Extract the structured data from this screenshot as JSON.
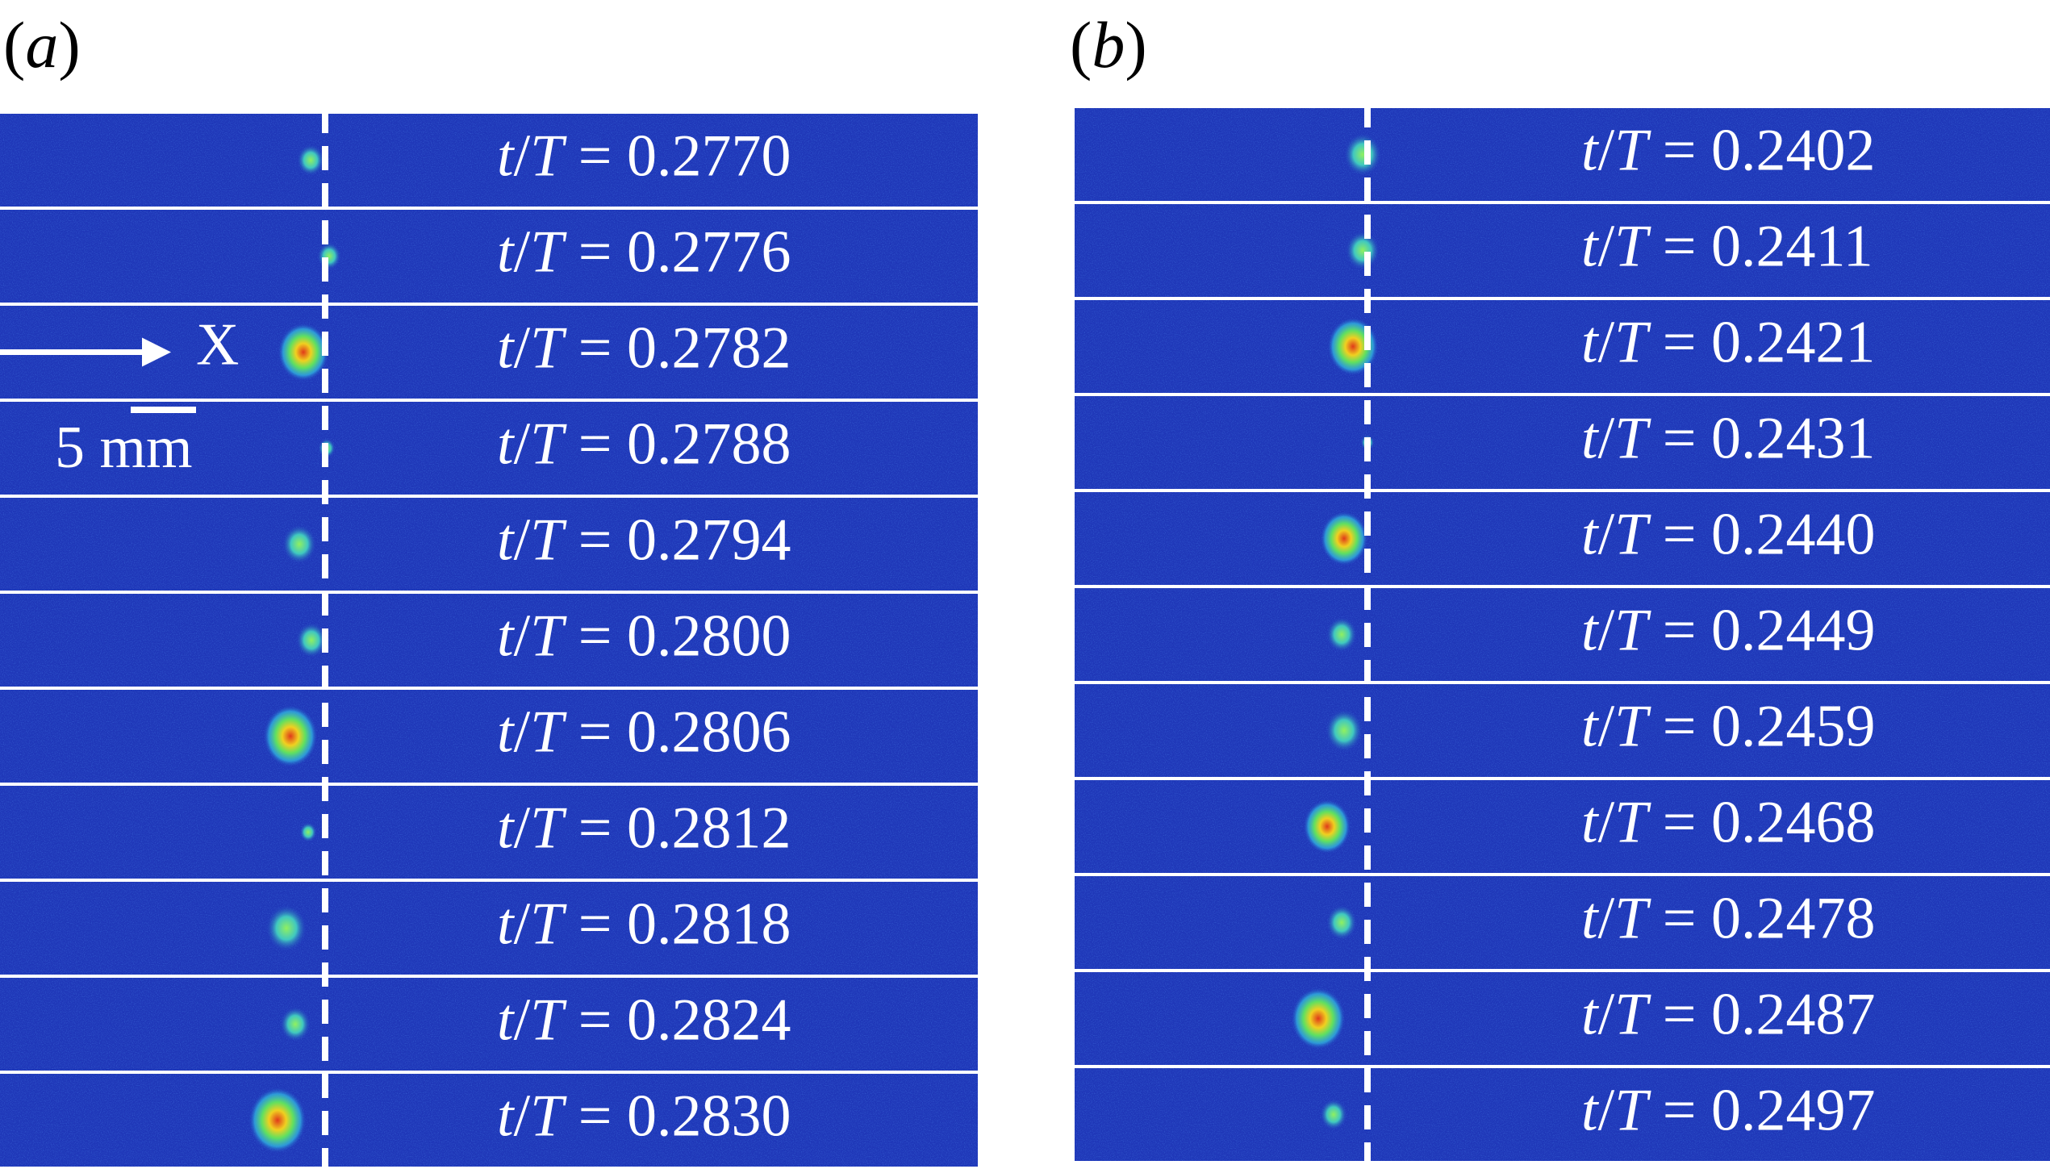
{
  "panels": [
    {
      "label": "(a)",
      "frames": [
        "t/T = 0.2770",
        "t/T = 0.2776",
        "t/T = 0.2782",
        "t/T = 0.2788",
        "t/T = 0.2794",
        "t/T = 0.2800",
        "t/T = 0.2806",
        "t/T = 0.2812",
        "t/T = 0.2818",
        "t/T = 0.2824",
        "t/T = 0.2830"
      ]
    },
    {
      "label": "(b)",
      "frames": [
        "t/T = 0.2402",
        "t/T = 0.2411",
        "t/T = 0.2421",
        "t/T = 0.2431",
        "t/T = 0.2440",
        "t/T = 0.2449",
        "t/T = 0.2459",
        "t/T = 0.2468",
        "t/T = 0.2478",
        "t/T = 0.2487",
        "t/T = 0.2497"
      ]
    }
  ],
  "annotations": {
    "axis_label": "X",
    "scale_bar": "5 mm"
  }
}
